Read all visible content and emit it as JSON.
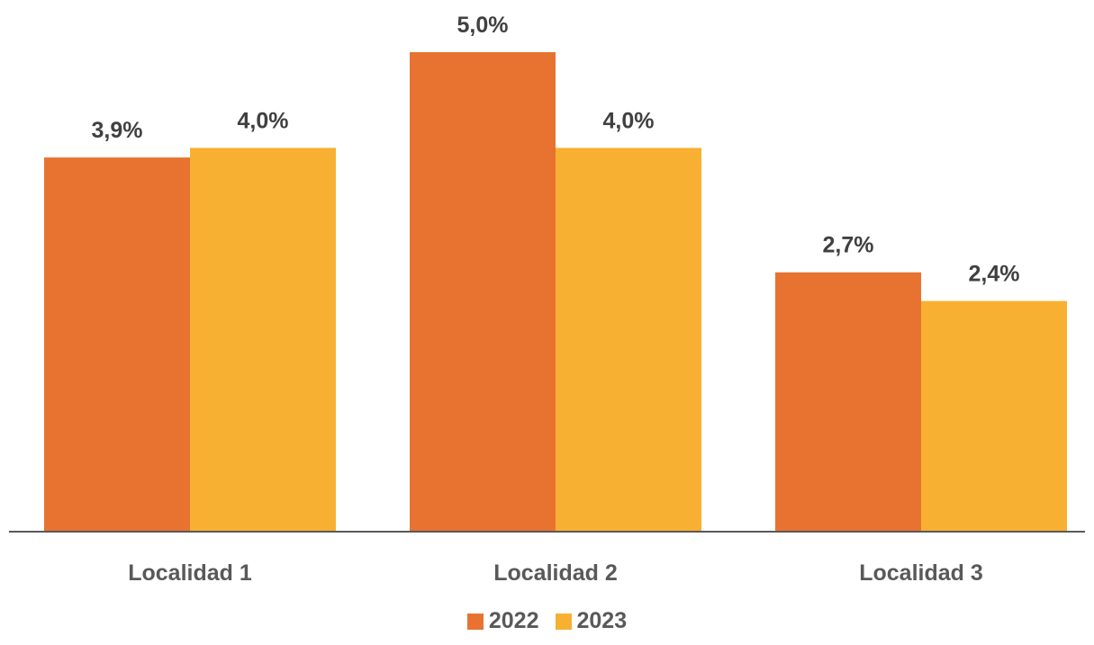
{
  "chart_data": {
    "type": "bar",
    "categories": [
      "Localidad 1",
      "Localidad 2",
      "Localidad 3"
    ],
    "series": [
      {
        "name": "2022",
        "values": [
          3.9,
          5.0,
          2.7
        ],
        "labels": [
          "3,9%",
          "5,0%",
          "2,7%"
        ],
        "color": "#E87331"
      },
      {
        "name": "2023",
        "values": [
          4.0,
          4.0,
          2.4
        ],
        "labels": [
          "4,0%",
          "4,0%",
          "2,4%"
        ],
        "color": "#F7B032"
      }
    ],
    "title": "",
    "xlabel": "",
    "ylabel": "",
    "ylim": [
      0,
      5.0
    ],
    "grid": false,
    "legend_position": "bottom"
  }
}
